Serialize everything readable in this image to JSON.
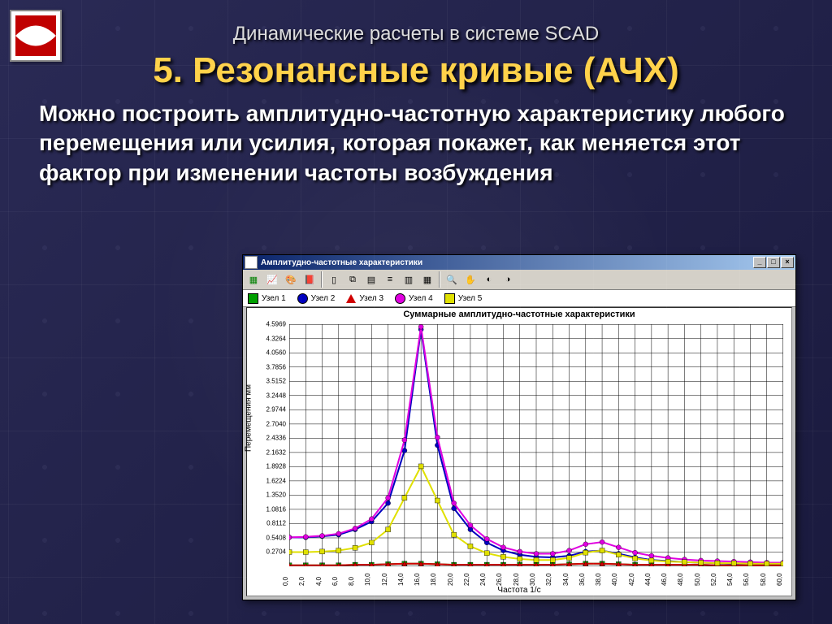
{
  "slide": {
    "supertitle": "Динамические расчеты в системе  SCAD",
    "title": "5. Резонансные кривые (АЧХ)",
    "body": "Можно построить амплитудно-частотную характеристику любого перемещения или усилия, которая покажет, как меняется этот фактор при изменении частоты возбуждения",
    "title_color": "#ffd24a",
    "text_color": "#ffffff",
    "bg_from": "#2a2a55",
    "bg_to": "#1a1a3e"
  },
  "window": {
    "title": "Амплитудно-частотные характеристики",
    "sysbuttons": {
      "min": "_",
      "max": "□",
      "close": "×"
    },
    "toolbar_icons": [
      {
        "name": "chart-green-icon",
        "glyph": "▦",
        "color": "#008000"
      },
      {
        "name": "chart-line-icon",
        "glyph": "📈",
        "color": "#000"
      },
      {
        "name": "palette-icon",
        "glyph": "🎨",
        "color": "#000"
      },
      {
        "name": "book-icon",
        "glyph": "📕",
        "color": "#8b0000"
      },
      {
        "name": "sep"
      },
      {
        "name": "page-icon",
        "glyph": "▯",
        "color": "#000"
      },
      {
        "name": "copy-icon",
        "glyph": "⧉",
        "color": "#000"
      },
      {
        "name": "doc-icon",
        "glyph": "▤",
        "color": "#000"
      },
      {
        "name": "list-icon",
        "glyph": "≡",
        "color": "#000"
      },
      {
        "name": "bars-icon",
        "glyph": "▥",
        "color": "#000"
      },
      {
        "name": "table-icon",
        "glyph": "▦",
        "color": "#000"
      },
      {
        "name": "sep"
      },
      {
        "name": "zoom-icon",
        "glyph": "🔍",
        "color": "#000"
      },
      {
        "name": "hand-icon",
        "glyph": "✋",
        "color": "#000"
      },
      {
        "name": "tool1-icon",
        "glyph": "◐",
        "color": "#000"
      },
      {
        "name": "tool2-icon",
        "glyph": "◑",
        "color": "#000"
      }
    ],
    "legend": [
      {
        "label": "Узел 1",
        "shape": "square",
        "color": "#00a000"
      },
      {
        "label": "Узел 2",
        "shape": "circle",
        "color": "#0000c0"
      },
      {
        "label": "Узел 3",
        "shape": "triangle",
        "color": "#d00000"
      },
      {
        "label": "Узел 4",
        "shape": "circle",
        "color": "#e000e0"
      },
      {
        "label": "Узел 5",
        "shape": "square",
        "color": "#e0e000"
      }
    ]
  },
  "chart": {
    "title": "Суммарные амплитудно-частотные характеристики",
    "xlabel": "Частота 1/c",
    "ylabel": "Перемещения мм",
    "type": "line",
    "xlim": [
      0,
      60
    ],
    "ylim": [
      0,
      4.6
    ],
    "xtick_step": 2,
    "yticks": [
      0.2704,
      0.5408,
      0.8112,
      1.0816,
      1.352,
      1.6224,
      1.8928,
      2.1632,
      2.4336,
      2.704,
      2.9744,
      3.2448,
      3.5152,
      3.7856,
      4.056,
      4.3264,
      4.5969
    ],
    "grid_color": "#000000",
    "background_color": "#ffffff",
    "line_width": 2,
    "marker_size": 3,
    "series": [
      {
        "name": "Узел 1",
        "color": "#00a000",
        "marker": "square",
        "y": [
          0.02,
          0.02,
          0.02,
          0.02,
          0.03,
          0.03,
          0.04,
          0.05,
          0.05,
          0.04,
          0.03,
          0.03,
          0.03,
          0.03,
          0.03,
          0.03,
          0.03,
          0.04,
          0.05,
          0.05,
          0.04,
          0.03,
          0.03,
          0.03,
          0.03,
          0.03,
          0.02,
          0.02,
          0.02,
          0.02,
          0.02
        ]
      },
      {
        "name": "Узел 2",
        "color": "#0000c0",
        "marker": "circle",
        "y": [
          0.55,
          0.55,
          0.57,
          0.6,
          0.7,
          0.85,
          1.2,
          2.2,
          4.5,
          2.3,
          1.1,
          0.7,
          0.45,
          0.3,
          0.22,
          0.18,
          0.17,
          0.2,
          0.28,
          0.3,
          0.24,
          0.17,
          0.12,
          0.1,
          0.08,
          0.07,
          0.06,
          0.05,
          0.05,
          0.04,
          0.04
        ]
      },
      {
        "name": "Узел 3",
        "color": "#d00000",
        "marker": "triangle",
        "y": [
          0.02,
          0.02,
          0.02,
          0.02,
          0.03,
          0.03,
          0.04,
          0.05,
          0.05,
          0.04,
          0.03,
          0.03,
          0.03,
          0.03,
          0.03,
          0.03,
          0.03,
          0.04,
          0.05,
          0.05,
          0.04,
          0.03,
          0.03,
          0.03,
          0.03,
          0.03,
          0.02,
          0.02,
          0.02,
          0.02,
          0.02
        ]
      },
      {
        "name": "Узел 4",
        "color": "#e000e0",
        "marker": "circle",
        "y": [
          0.55,
          0.56,
          0.58,
          0.62,
          0.72,
          0.9,
          1.3,
          2.4,
          4.55,
          2.45,
          1.2,
          0.78,
          0.52,
          0.36,
          0.28,
          0.24,
          0.24,
          0.3,
          0.42,
          0.46,
          0.36,
          0.26,
          0.2,
          0.16,
          0.13,
          0.11,
          0.1,
          0.09,
          0.08,
          0.07,
          0.07
        ]
      },
      {
        "name": "Узел 5",
        "color": "#e0e000",
        "marker": "square",
        "y": [
          0.27,
          0.27,
          0.28,
          0.3,
          0.35,
          0.45,
          0.7,
          1.3,
          1.9,
          1.25,
          0.6,
          0.38,
          0.25,
          0.18,
          0.14,
          0.12,
          0.12,
          0.16,
          0.26,
          0.3,
          0.22,
          0.15,
          0.11,
          0.09,
          0.08,
          0.07,
          0.06,
          0.06,
          0.05,
          0.05,
          0.05
        ]
      }
    ],
    "x": [
      0,
      2,
      4,
      6,
      8,
      10,
      12,
      14,
      16,
      18,
      20,
      22,
      24,
      26,
      28,
      30,
      32,
      34,
      36,
      38,
      40,
      42,
      44,
      46,
      48,
      50,
      52,
      54,
      56,
      58,
      60
    ]
  }
}
